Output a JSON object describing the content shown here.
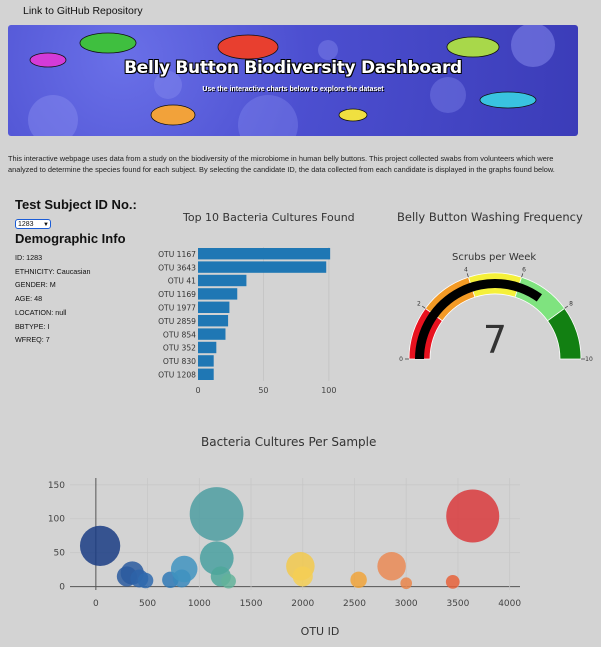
{
  "nav": {
    "link_label": "Link to GitHub Repository"
  },
  "banner": {
    "title": "Belly Button Biodiversity Dashboard",
    "subtitle": "Use the interactive charts below to explore the dataset"
  },
  "intro": "This interactive webpage uses data from a study on the biodiversity of the microbiome in human belly buttons. This project collected swabs from volunteers which were analyzed to determine the species found for each subject. By selecting the candidate ID, the data collected from each candidate is displayed in the graphs found below.",
  "selector": {
    "label": "Test Subject ID No.:",
    "selected": "1283"
  },
  "demographics": {
    "title": "Demographic Info",
    "items": [
      "ID: 1283",
      "ETHNICITY: Caucasian",
      "GENDER: M",
      "AGE: 48",
      "LOCATION: null",
      "BBTYPE: I",
      "WFREQ: 7"
    ]
  },
  "colors": {
    "bar": "#1f77b4",
    "gauge_needle": "#000000"
  },
  "chart_data": [
    {
      "type": "bar",
      "orientation": "horizontal",
      "title": "Top 10 Bacteria Cultures Found",
      "categories": [
        "OTU 1167",
        "OTU 3643",
        "OTU 41",
        "OTU 1169",
        "OTU 1977",
        "OTU 2859",
        "OTU 854",
        "OTU 352",
        "OTU 830",
        "OTU 1208"
      ],
      "values": [
        101,
        98,
        37,
        30,
        24,
        23,
        21,
        14,
        12,
        12
      ],
      "xticks": [
        0,
        50,
        100
      ],
      "xlim": [
        0,
        107
      ]
    },
    {
      "type": "gauge",
      "title": "Belly Button Washing Frequency",
      "subtitle": "Scrubs per Week",
      "value": 7,
      "value_label": "7",
      "range": [
        0,
        10
      ],
      "ticks": [
        0,
        2,
        4,
        6,
        8,
        10
      ],
      "bands": [
        {
          "from": 0,
          "to": 2,
          "color": "#e8121f"
        },
        {
          "from": 2,
          "to": 4,
          "color": "#f39a25"
        },
        {
          "from": 4,
          "to": 6,
          "color": "#f5f03a"
        },
        {
          "from": 6,
          "to": 8,
          "color": "#7fe37f"
        },
        {
          "from": 8,
          "to": 10,
          "color": "#128012"
        }
      ]
    },
    {
      "type": "scatter",
      "subtype": "bubble",
      "title": "Bacteria Cultures Per Sample",
      "xlabel": "OTU ID",
      "xticks": [
        0,
        500,
        1000,
        1500,
        2000,
        2500,
        3000,
        3500,
        4000
      ],
      "yticks": [
        0,
        50,
        100,
        150
      ],
      "xlim": [
        -250,
        4100
      ],
      "ylim": [
        -5,
        160
      ],
      "points": [
        {
          "x": 41,
          "y": 60,
          "color": "#1a3c84"
        },
        {
          "x": 300,
          "y": 15,
          "color": "#2a5b9f"
        },
        {
          "x": 352,
          "y": 20,
          "color": "#2a5b9f"
        },
        {
          "x": 420,
          "y": 12,
          "color": "#2d63a8"
        },
        {
          "x": 480,
          "y": 9,
          "color": "#2f6aae"
        },
        {
          "x": 720,
          "y": 10,
          "color": "#2f78b5"
        },
        {
          "x": 830,
          "y": 12,
          "color": "#3b88bc"
        },
        {
          "x": 854,
          "y": 26,
          "color": "#3f93c0"
        },
        {
          "x": 1167,
          "y": 107,
          "color": "#4e9ea1"
        },
        {
          "x": 1169,
          "y": 42,
          "color": "#49a0a0"
        },
        {
          "x": 1208,
          "y": 15,
          "color": "#4ea79a"
        },
        {
          "x": 1283,
          "y": 8,
          "color": "#63b39a"
        },
        {
          "x": 1977,
          "y": 30,
          "color": "#f2c94c"
        },
        {
          "x": 2000,
          "y": 15,
          "color": "#f5cf55"
        },
        {
          "x": 2540,
          "y": 10,
          "color": "#f0a33a"
        },
        {
          "x": 2859,
          "y": 30,
          "color": "#ea8a55"
        },
        {
          "x": 3000,
          "y": 5,
          "color": "#e9854a"
        },
        {
          "x": 3450,
          "y": 7,
          "color": "#e6623a"
        },
        {
          "x": 3643,
          "y": 104,
          "color": "#d9393c"
        }
      ]
    }
  ]
}
